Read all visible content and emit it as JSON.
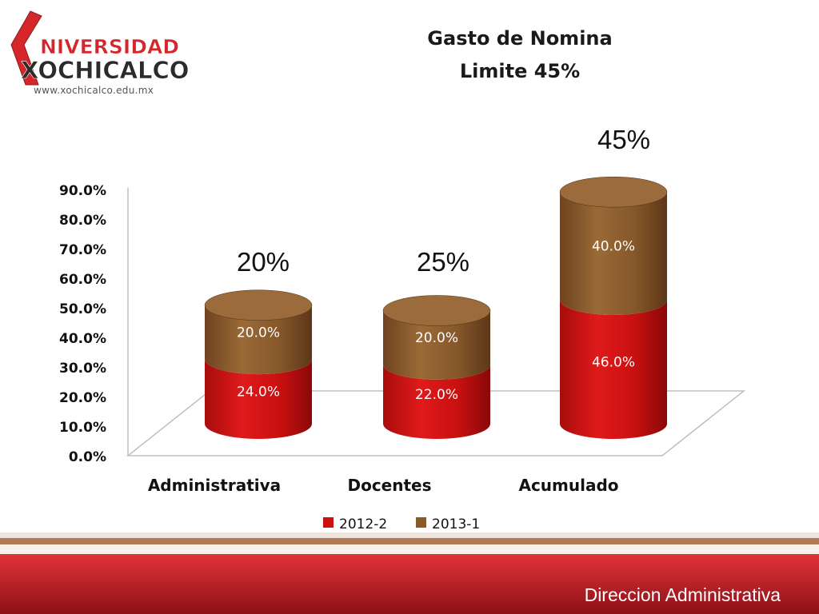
{
  "logo": {
    "wordmark_top": "NIVERSIDAD",
    "wordmark_bottom": "XOCHICALCO",
    "url": "www.xochicalco.edu.mx",
    "colors": {
      "red": "#d5272b",
      "dark": "#2b2b2b"
    }
  },
  "title": {
    "line1": "Gasto de Nomina",
    "line2": "Limite 45%"
  },
  "chart_data": {
    "type": "bar",
    "stacked": true,
    "style": "3d-cylinder",
    "categories": [
      "Administrativa",
      "Docentes",
      "Acumulado"
    ],
    "series": [
      {
        "name": "2012-2",
        "color": "#cc1010",
        "values": [
          24.0,
          22.0,
          46.0
        ],
        "labels": [
          "24.0%",
          "22.0%",
          "46.0%"
        ]
      },
      {
        "name": "2013-1",
        "color": "#8a5a2b",
        "values": [
          20.0,
          20.0,
          40.0
        ],
        "labels": [
          "20.0%",
          "20.0%",
          "40.0%"
        ]
      }
    ],
    "ylim": [
      0,
      90
    ],
    "ytick_labels": [
      "0.0%",
      "10.0%",
      "20.0%",
      "30.0%",
      "40.0%",
      "50.0%",
      "60.0%",
      "70.0%",
      "80.0%",
      "90.0%"
    ],
    "xlabel": "",
    "ylabel": "",
    "legend_position": "bottom",
    "annotations": [
      "20%",
      "25%",
      "45%"
    ],
    "grid": false
  },
  "footer": {
    "text": "Direccion Administrativa",
    "colors": {
      "band": "#c81f26",
      "stripe": "#b07a58"
    }
  }
}
